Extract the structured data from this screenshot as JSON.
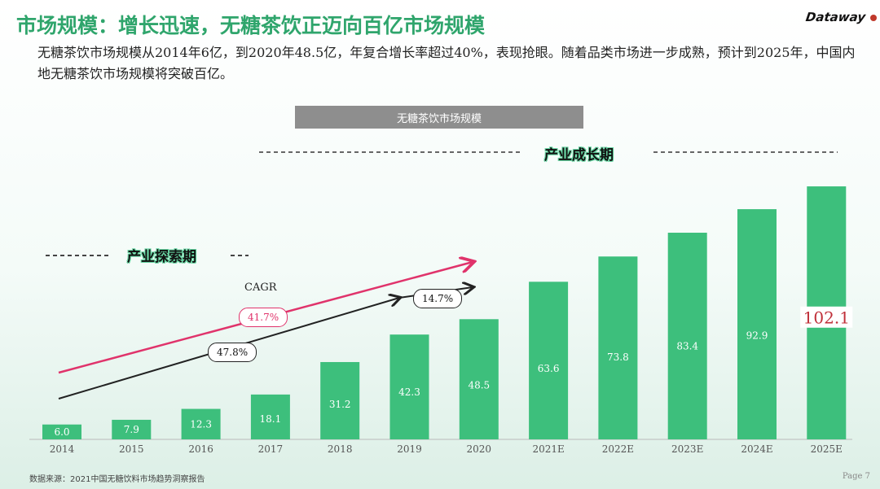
{
  "title": "市场规模：增长迅速，无糖茶饮正迈向百亿市场规模",
  "subtitle": "无糖茶饮市场规模从2014年6亿，到2020年48.5亿，年复合增长率超过40%，表现抢眼。随着品类市场进一步成熟，预计到2025年，中国内地无糖茶饮市场规模将突破百亿。",
  "logo": "Dataway",
  "stages": {
    "growth": "产业成长期",
    "explore": "产业探索期"
  },
  "cagr": {
    "label": "CAGR",
    "pink": "41.7%",
    "black_long": "47.8%",
    "black_short": "14.7%"
  },
  "source": "数据来源：2021中国无糖饮料市场趋势洞察报告",
  "page": "Page 7",
  "colors": {
    "title": "#2fa56c",
    "bar": "#3dbf7c",
    "highlight": "#c0303a",
    "pink_arrow": "#e0336b"
  },
  "chart_data": {
    "type": "bar",
    "title": "无糖茶饮市场规模",
    "categories": [
      "2014",
      "2015",
      "2016",
      "2017",
      "2018",
      "2019",
      "2020",
      "2021E",
      "2022E",
      "2023E",
      "2024E",
      "2025E"
    ],
    "values": [
      6.0,
      7.9,
      12.3,
      18.1,
      31.2,
      42.3,
      48.5,
      63.6,
      73.8,
      83.4,
      92.9,
      102.1
    ],
    "value_labels": [
      "6.0",
      "7.9",
      "12.3",
      "18.1",
      "31.2",
      "42.3",
      "48.5",
      "63.6",
      "73.8",
      "83.4",
      "92.9",
      "102.1"
    ],
    "highlight_index": 11,
    "ylim": [
      0,
      110
    ],
    "grid": false,
    "xlabel": "",
    "ylabel": ""
  }
}
